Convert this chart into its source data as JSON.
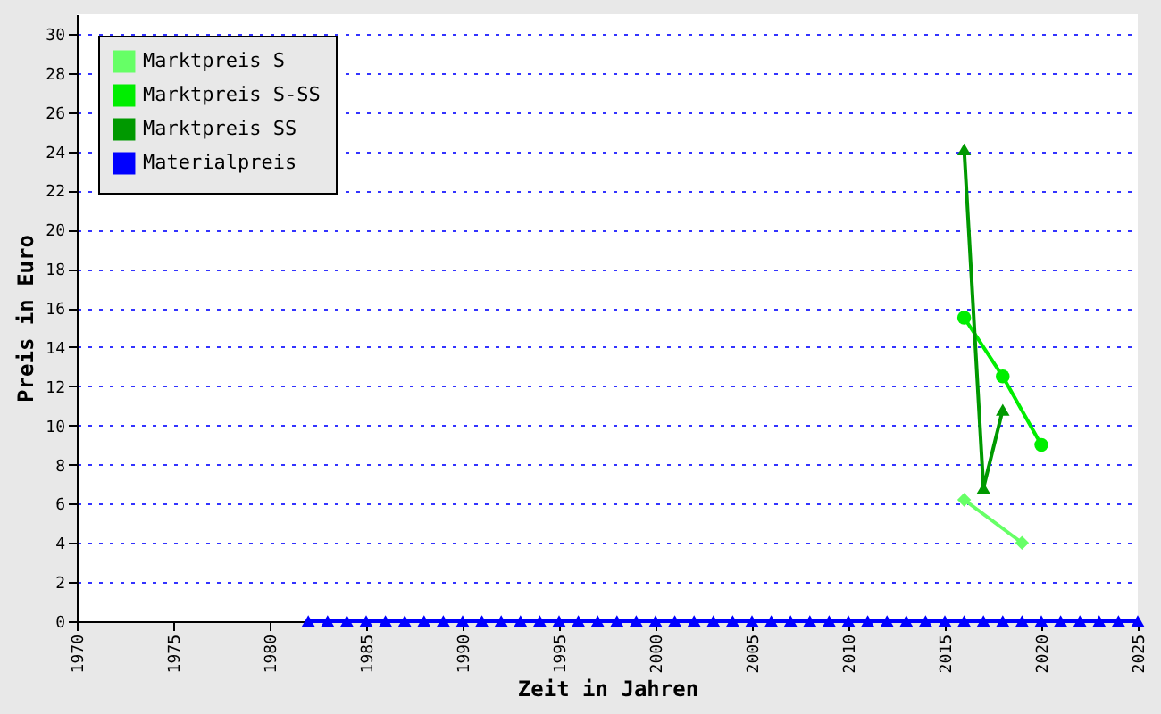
{
  "chart_data": {
    "type": "line",
    "xlabel": "Zeit in Jahren",
    "ylabel": "Preis in Euro",
    "xlim": [
      1970,
      2025
    ],
    "xticks": [
      1970,
      1975,
      1980,
      1985,
      1990,
      1995,
      2000,
      2005,
      2010,
      2015,
      2020,
      2025
    ],
    "ylim": [
      0,
      31
    ],
    "yticks": [
      0,
      2,
      4,
      6,
      8,
      10,
      12,
      14,
      16,
      18,
      20,
      22,
      24,
      26,
      28,
      30
    ],
    "grid": "y",
    "legend": "top left",
    "series": [
      {
        "name": "Marktpreis S",
        "color": "#66ff66",
        "marker": "diamond",
        "x": [
          2016,
          2019
        ],
        "values": [
          6.2,
          4.0
        ]
      },
      {
        "name": "Marktpreis S-SS",
        "color": "#00ee00",
        "marker": "circle",
        "x": [
          2016,
          2018,
          2020
        ],
        "values": [
          15.5,
          12.5,
          9.0
        ]
      },
      {
        "name": "Marktpreis SS",
        "color": "#009900",
        "marker": "triangle",
        "x": [
          2016,
          2017,
          2018
        ],
        "values": [
          24.1,
          6.8,
          10.8
        ]
      },
      {
        "name": "Materialpreis",
        "color": "#0000ff",
        "marker": "triangle",
        "x": [
          1982,
          1983,
          1984,
          1985,
          1986,
          1987,
          1988,
          1989,
          1990,
          1991,
          1992,
          1993,
          1994,
          1995,
          1996,
          1997,
          1998,
          1999,
          2000,
          2001,
          2002,
          2003,
          2004,
          2005,
          2006,
          2007,
          2008,
          2009,
          2010,
          2011,
          2012,
          2013,
          2014,
          2015,
          2016,
          2017,
          2018,
          2019,
          2020,
          2021,
          2022,
          2023,
          2024,
          2025
        ],
        "values": [
          0,
          0,
          0,
          0,
          0,
          0,
          0,
          0,
          0,
          0,
          0,
          0,
          0,
          0,
          0,
          0,
          0,
          0,
          0,
          0,
          0,
          0,
          0,
          0,
          0,
          0,
          0,
          0,
          0,
          0,
          0,
          0,
          0,
          0,
          0,
          0,
          0,
          0,
          0,
          0,
          0,
          0,
          0,
          0
        ]
      }
    ]
  }
}
